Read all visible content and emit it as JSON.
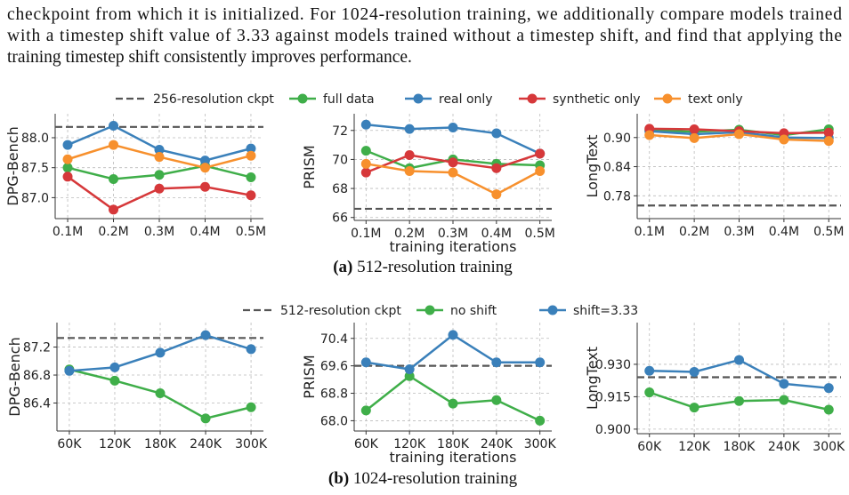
{
  "paragraph": [
    "checkpoint from which it is initialized. For 1024-resolution training, we additionally compare models trained",
    "with a timestep shift value of 3.33 against models trained without a timestep shift, and find that applying the",
    "training timestep shift consistently improves performance."
  ],
  "chart_data": [
    {
      "type": "line",
      "ylabel": "DPG-Bench",
      "categories": [
        "0.1M",
        "0.2M",
        "0.3M",
        "0.4M",
        "0.5M"
      ],
      "ylim": [
        86.65,
        88.4
      ],
      "yticks": [
        {
          "value": 87.0,
          "label": "87.0"
        },
        {
          "value": 87.5,
          "label": "87.5"
        },
        {
          "value": 88.0,
          "label": "88.0"
        }
      ],
      "grid": true,
      "reference": {
        "name": "256-resolution ckpt",
        "value": 88.18,
        "color": "#555555"
      },
      "series": [
        {
          "name": "full data",
          "color": "#3fae49",
          "values": [
            87.5,
            87.31,
            87.38,
            87.53,
            87.34
          ]
        },
        {
          "name": "real only",
          "color": "#3a80ba",
          "values": [
            87.88,
            88.2,
            87.8,
            87.62,
            87.82
          ]
        },
        {
          "name": "synthetic only",
          "color": "#d6383a",
          "values": [
            87.35,
            86.8,
            87.15,
            87.18,
            87.04
          ]
        },
        {
          "name": "text only",
          "color": "#f7902d",
          "values": [
            87.64,
            87.88,
            87.68,
            87.5,
            87.7
          ]
        }
      ]
    },
    {
      "type": "line",
      "ylabel": "PRISM",
      "xlabel": "training iterations",
      "categories": [
        "0.1M",
        "0.2M",
        "0.3M",
        "0.4M",
        "0.5M"
      ],
      "ylim": [
        65.8,
        73.15
      ],
      "yticks": [
        66,
        68,
        70,
        72
      ],
      "grid": true,
      "reference": {
        "value": 66.6,
        "color": "#555555"
      },
      "series": [
        {
          "color": "#3fae49",
          "values": [
            70.6,
            69.4,
            70.0,
            69.7,
            69.6
          ]
        },
        {
          "color": "#3a80ba",
          "values": [
            72.4,
            72.1,
            72.2,
            71.8,
            70.4
          ]
        },
        {
          "color": "#d6383a",
          "values": [
            69.1,
            70.3,
            69.8,
            69.4,
            70.4
          ]
        },
        {
          "color": "#f7902d",
          "values": [
            69.7,
            69.2,
            69.1,
            67.6,
            69.2
          ]
        }
      ]
    },
    {
      "type": "line",
      "ylabel": "LongText",
      "categories": [
        "0.1M",
        "0.2M",
        "0.3M",
        "0.4M",
        "0.5M"
      ],
      "ylim": [
        0.733,
        0.949
      ],
      "yticks": [
        0.78,
        0.84,
        {
          "value": 0.9,
          "label": "0.90"
        }
      ],
      "grid": true,
      "reference": {
        "value": 0.76,
        "color": "#555555"
      },
      "series": [
        {
          "color": "#3fae49",
          "values": [
            0.915,
            0.912,
            0.916,
            0.905,
            0.917
          ]
        },
        {
          "color": "#3a80ba",
          "values": [
            0.913,
            0.907,
            0.911,
            0.9,
            0.899
          ]
        },
        {
          "color": "#d6383a",
          "values": [
            0.918,
            0.917,
            0.913,
            0.909,
            0.91
          ]
        },
        {
          "color": "#f7902d",
          "values": [
            0.905,
            0.899,
            0.907,
            0.896,
            0.893
          ]
        }
      ]
    },
    {
      "type": "line",
      "ylabel": "DPG-Bench",
      "categories": [
        "60K",
        "120K",
        "180K",
        "240K",
        "300K"
      ],
      "ylim": [
        86.0,
        87.55
      ],
      "yticks": [
        86.4,
        86.8,
        87.2
      ],
      "grid": true,
      "reference": {
        "name": "512-resolution ckpt",
        "value": 87.33,
        "color": "#555555"
      },
      "series": [
        {
          "name": "no shift",
          "color": "#3fae49",
          "values": [
            86.88,
            86.72,
            86.54,
            86.18,
            86.34
          ]
        },
        {
          "name": "shift=3.33",
          "color": "#3a80ba",
          "values": [
            86.86,
            86.91,
            87.12,
            87.37,
            87.17
          ]
        }
      ]
    },
    {
      "type": "line",
      "ylabel": "PRISM",
      "xlabel": "training iterations",
      "categories": [
        "60K",
        "120K",
        "180K",
        "240K",
        "300K"
      ],
      "ylim": [
        67.7,
        70.86
      ],
      "yticks": [
        {
          "value": 68.0,
          "label": "68.0"
        },
        68.8,
        69.6,
        70.4
      ],
      "grid": true,
      "reference": {
        "value": 69.6,
        "color": "#555555"
      },
      "series": [
        {
          "color": "#3fae49",
          "values": [
            68.3,
            69.3,
            68.5,
            68.6,
            68.0
          ]
        },
        {
          "color": "#3a80ba",
          "values": [
            69.7,
            69.5,
            70.5,
            69.7,
            69.7
          ]
        }
      ]
    },
    {
      "type": "line",
      "ylabel": "LongText",
      "categories": [
        "60K",
        "120K",
        "180K",
        "240K",
        "300K"
      ],
      "ylim": [
        0.8979,
        0.9493
      ],
      "yticks": [
        {
          "value": 0.9,
          "label": "0.900"
        },
        0.915,
        {
          "value": 0.93,
          "label": "0.930"
        }
      ],
      "grid": true,
      "reference": {
        "value": 0.924,
        "color": "#555555"
      },
      "series": [
        {
          "color": "#3fae49",
          "values": [
            0.917,
            0.91,
            0.913,
            0.9135,
            0.909
          ]
        },
        {
          "color": "#3a80ba",
          "values": [
            0.927,
            0.9265,
            0.932,
            0.921,
            0.919
          ]
        }
      ]
    }
  ],
  "figures": [
    {
      "label": "(a)",
      "caption": "512-resolution training"
    },
    {
      "label": "(b)",
      "caption": "1024-resolution training"
    }
  ]
}
